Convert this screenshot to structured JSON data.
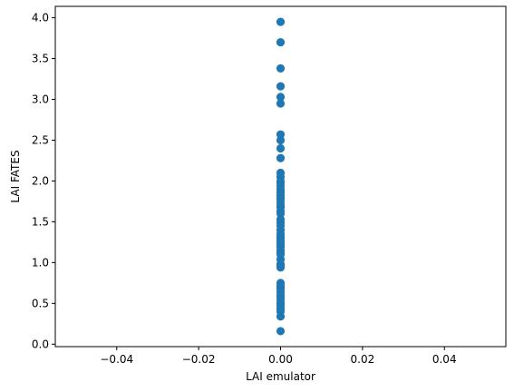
{
  "chart_data": {
    "type": "scatter",
    "xlabel": "LAI emulator",
    "ylabel": "LAI FATES",
    "xlim": [
      -0.055,
      0.055
    ],
    "ylim": [
      -0.03,
      4.14
    ],
    "x_ticks": [
      -0.04,
      -0.02,
      0.0,
      0.02,
      0.04
    ],
    "x_tick_labels": [
      "−0.04",
      "−0.02",
      "0.00",
      "0.02",
      "0.04"
    ],
    "y_ticks": [
      0.0,
      0.5,
      1.0,
      1.5,
      2.0,
      2.5,
      3.0,
      3.5,
      4.0
    ],
    "y_tick_labels": [
      "0.0",
      "0.5",
      "1.0",
      "1.5",
      "2.0",
      "2.5",
      "3.0",
      "3.5",
      "4.0"
    ],
    "grid": false,
    "marker_color": "#1f77b4",
    "series": [
      {
        "x": [
          0,
          0,
          0,
          0,
          0,
          0,
          0,
          0,
          0,
          0,
          0,
          0,
          0,
          0,
          0,
          0,
          0,
          0,
          0,
          0,
          0,
          0,
          0,
          0,
          0,
          0,
          0,
          0,
          0,
          0,
          0,
          0,
          0,
          0,
          0,
          0,
          0,
          0,
          0,
          0,
          0,
          0,
          0,
          0,
          0,
          0,
          0,
          0,
          0,
          0,
          0,
          0,
          0,
          0,
          0,
          0,
          0,
          0,
          0,
          0
        ],
        "y": [
          3.95,
          3.7,
          3.38,
          3.16,
          3.03,
          2.95,
          2.57,
          2.5,
          2.4,
          2.28,
          2.1,
          2.05,
          1.98,
          1.94,
          1.9,
          1.86,
          1.82,
          1.78,
          1.74,
          1.68,
          1.63,
          1.53,
          1.49,
          1.45,
          1.4,
          1.35,
          1.3,
          1.26,
          1.24,
          1.22,
          1.19,
          1.15,
          1.12,
          1.04,
          0.98,
          0.94,
          0.75,
          0.72,
          0.68,
          0.64,
          0.6,
          0.55,
          0.51,
          0.47,
          0.43,
          0.4,
          0.34,
          0.16,
          1.1,
          1.6,
          1.87,
          2.0,
          0.58,
          1.32,
          1.7,
          0.7,
          1.8,
          1.27,
          0.96,
          0.49
        ]
      }
    ]
  }
}
